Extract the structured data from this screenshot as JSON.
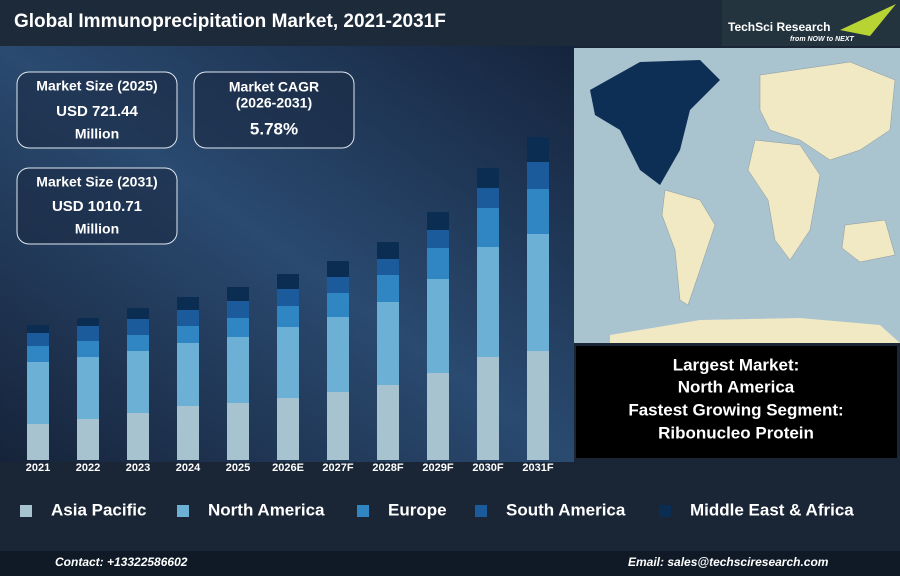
{
  "header": {
    "title": "Global Immunoprecipitation Market, 2021-2031F"
  },
  "logo": {
    "name": "TechSci Research",
    "tagline": "from NOW to NEXT"
  },
  "stats": [
    {
      "label": "Market Size (2025)",
      "value": "USD 721.44",
      "unit": "Million"
    },
    {
      "label": "Market CAGR",
      "period": "(2026-2031)",
      "value": "5.78%"
    },
    {
      "label": "Market Size (2031)",
      "value": "USD 1010.71",
      "unit": "Million"
    }
  ],
  "highlights": [
    "Largest Market:",
    "North America",
    "Fastest Growing Segment:",
    "Ribonucleo Protein"
  ],
  "footer": {
    "contact": "Contact: +13322586602",
    "email": "Email: sales@techsciresearch.com"
  },
  "chart_data": {
    "type": "bar",
    "stacked": true,
    "categories": [
      "2021",
      "2022",
      "2023",
      "2024",
      "2025",
      "2026E",
      "2027F",
      "2028F",
      "2029F",
      "2030F",
      "2031F"
    ],
    "ylim": [
      0,
      340
    ],
    "series": [
      {
        "name": "Asia Pacific",
        "color": "#a7c3cf",
        "values": [
          36,
          41,
          47,
          54,
          57,
          62,
          68,
          75,
          87,
          103,
          109
        ]
      },
      {
        "name": "North America",
        "color": "#6cb0d6",
        "values": [
          62,
          62,
          62,
          63,
          66,
          71,
          75,
          83,
          94,
          110,
          117
        ]
      },
      {
        "name": "Europe",
        "color": "#2f86c2",
        "values": [
          16,
          16,
          16,
          17,
          19,
          21,
          24,
          27,
          31,
          39,
          45
        ]
      },
      {
        "name": "South America",
        "color": "#1b5b9b",
        "values": [
          13,
          15,
          16,
          16,
          17,
          17,
          16,
          16,
          18,
          20,
          27
        ]
      },
      {
        "name": "Middle East & Africa",
        "color": "#0c2d52",
        "values": [
          8,
          8,
          11,
          13,
          14,
          15,
          16,
          17,
          18,
          20,
          25
        ]
      }
    ]
  }
}
